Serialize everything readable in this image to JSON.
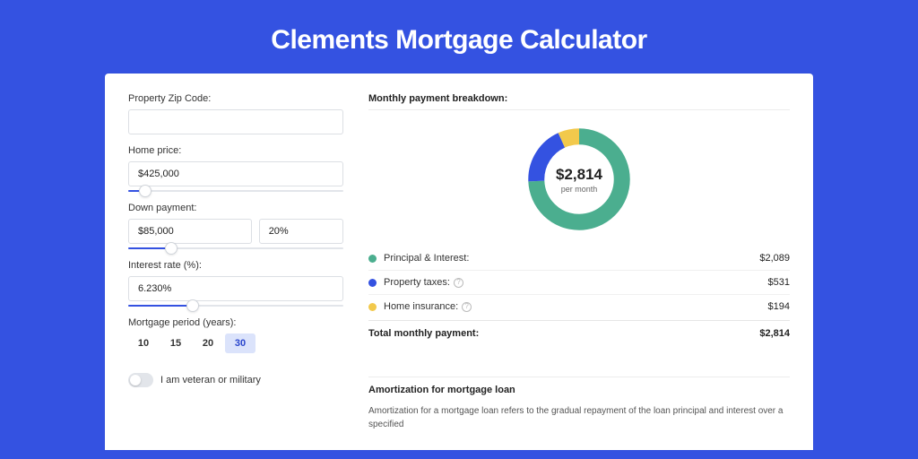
{
  "title": "Clements Mortgage Calculator",
  "colors": {
    "page_bg": "#3452e1",
    "card_bg": "#ffffff",
    "accent": "#3452e1",
    "principal": "#4bae8f",
    "taxes": "#3452e1",
    "insurance": "#f2c94c"
  },
  "form": {
    "zip": {
      "label": "Property Zip Code:",
      "value": ""
    },
    "home_price": {
      "label": "Home price:",
      "value": "$425,000",
      "slider_pct": 8
    },
    "down_payment": {
      "label": "Down payment:",
      "amount": "$85,000",
      "pct_display": "20%",
      "slider_pct": 20
    },
    "interest": {
      "label": "Interest rate (%):",
      "value": "6.230%",
      "slider_pct": 30
    },
    "period": {
      "label": "Mortgage period (years):",
      "options": [
        "10",
        "15",
        "20",
        "30"
      ],
      "active_index": 3
    },
    "veteran": {
      "label": "I am veteran or military",
      "checked": false
    }
  },
  "breakdown": {
    "title": "Monthly payment breakdown:",
    "donut": {
      "center_value": "$2,814",
      "center_sub": "per month",
      "segments": [
        {
          "key": "principal",
          "label": "Principal & Interest:",
          "value": "$2,089",
          "pct": 74.2,
          "color": "#4bae8f",
          "info": false
        },
        {
          "key": "taxes",
          "label": "Property taxes:",
          "value": "$531",
          "pct": 18.9,
          "color": "#3452e1",
          "info": true
        },
        {
          "key": "insurance",
          "label": "Home insurance:",
          "value": "$194",
          "pct": 6.9,
          "color": "#f2c94c",
          "info": true
        }
      ]
    },
    "total": {
      "label": "Total monthly payment:",
      "value": "$2,814"
    }
  },
  "amortization": {
    "title": "Amortization for mortgage loan",
    "text": "Amortization for a mortgage loan refers to the gradual repayment of the loan principal and interest over a specified"
  }
}
